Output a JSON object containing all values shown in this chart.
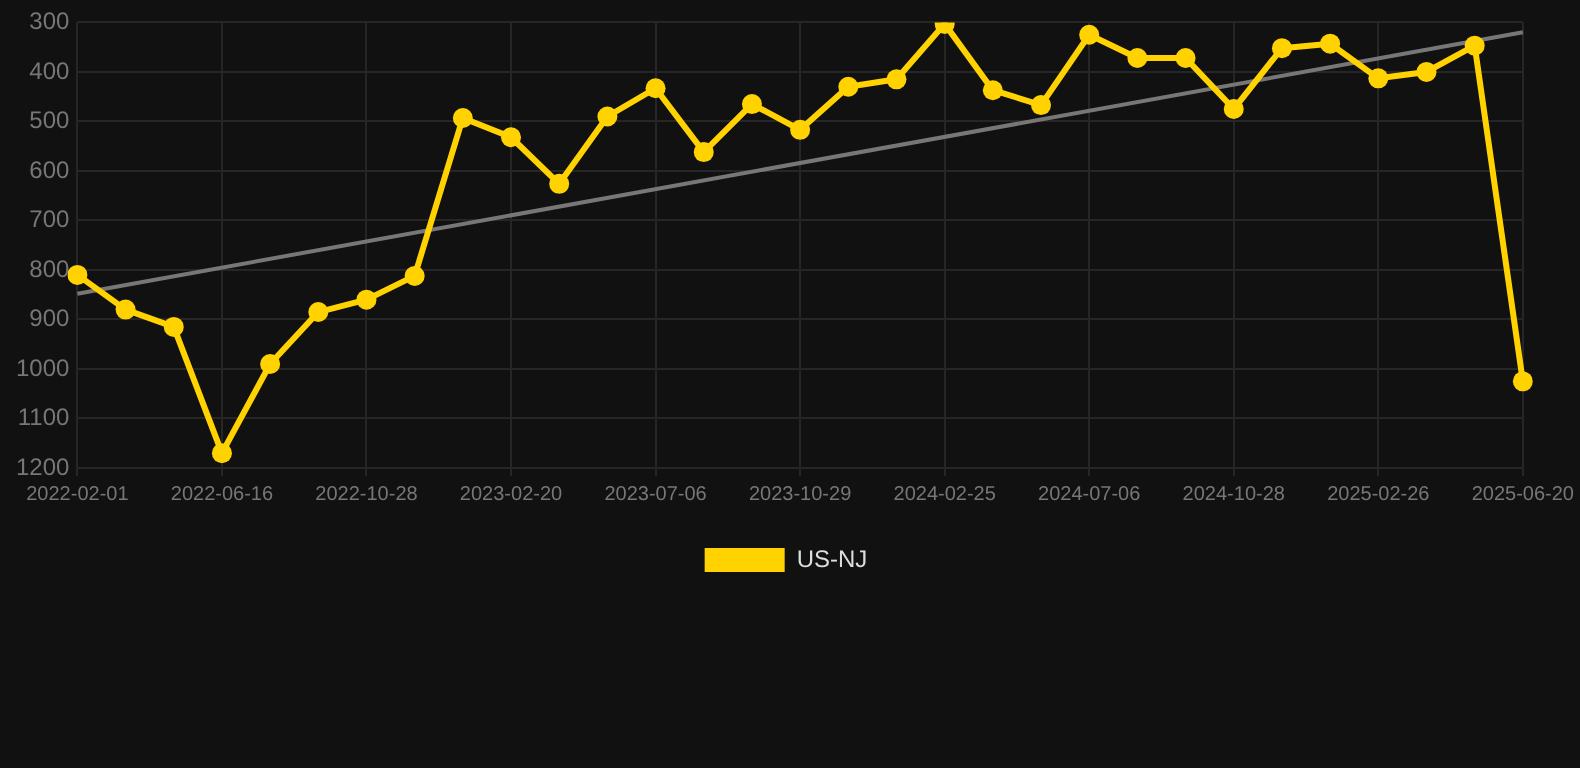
{
  "chart_data": {
    "type": "line",
    "categories": [
      "2022-02-01",
      null,
      null,
      "2022-06-16",
      null,
      null,
      "2022-10-28",
      null,
      null,
      "2023-02-20",
      null,
      null,
      "2023-07-06",
      null,
      null,
      "2023-10-29",
      null,
      null,
      "2024-02-25",
      null,
      null,
      "2024-07-06",
      null,
      null,
      "2024-10-28",
      null,
      null,
      "2025-02-26",
      null,
      null,
      "2025-06-20"
    ],
    "series": [
      {
        "name": "US-NJ",
        "color": "#ffd200",
        "marker": "circle",
        "values": [
          810,
          880,
          915,
          1170,
          990,
          885,
          860,
          812,
          493,
          532,
          626,
          490,
          433,
          562,
          465,
          517,
          430,
          415,
          303,
          437,
          467,
          325,
          372,
          372,
          475,
          352,
          343,
          413,
          400,
          347,
          1025
        ]
      },
      {
        "type": "line",
        "color": "#777777",
        "marker": "none",
        "values": [
          848,
          null,
          null,
          null,
          null,
          null,
          null,
          null,
          null,
          null,
          null,
          null,
          null,
          null,
          null,
          null,
          null,
          null,
          null,
          null,
          null,
          null,
          null,
          null,
          null,
          null,
          null,
          null,
          null,
          null,
          320
        ]
      }
    ],
    "ylim": [
      1200,
      300
    ],
    "yticks": [
      300,
      400,
      500,
      600,
      700,
      800,
      900,
      1000,
      1100,
      1200
    ],
    "grid": true,
    "legend": "bottom"
  }
}
